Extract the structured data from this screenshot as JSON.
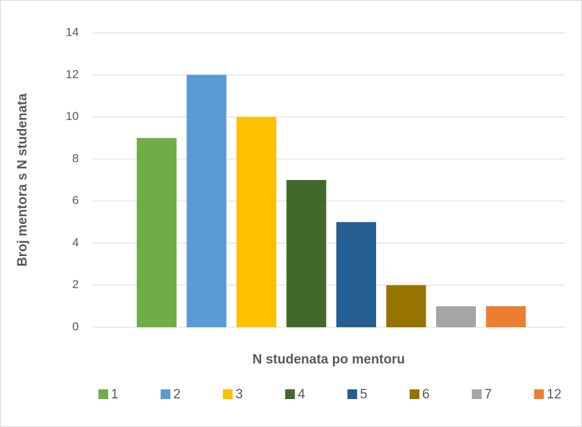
{
  "chart_data": {
    "type": "bar",
    "xlabel": "N studenata po mentoru",
    "ylabel": "Broj mentora s N studenata",
    "categories": [
      null
    ],
    "series": [
      {
        "name": "1",
        "color": "#70ad47",
        "values": [
          9
        ]
      },
      {
        "name": "2",
        "color": "#5b9bd5",
        "values": [
          12
        ]
      },
      {
        "name": "3",
        "color": "#ffc000",
        "values": [
          10
        ]
      },
      {
        "name": "4",
        "color": "#43682b",
        "values": [
          7
        ]
      },
      {
        "name": "5",
        "color": "#255e91",
        "values": [
          5
        ]
      },
      {
        "name": "6",
        "color": "#997300",
        "values": [
          2
        ]
      },
      {
        "name": "7",
        "color": "#a5a5a5",
        "values": [
          1
        ]
      },
      {
        "name": "12",
        "color": "#ed7d31",
        "values": [
          1
        ]
      }
    ],
    "ylim": [
      0,
      14
    ],
    "yticks": [
      0,
      2,
      4,
      6,
      8,
      10,
      12,
      14
    ],
    "grid": true,
    "legend": "bottom"
  }
}
